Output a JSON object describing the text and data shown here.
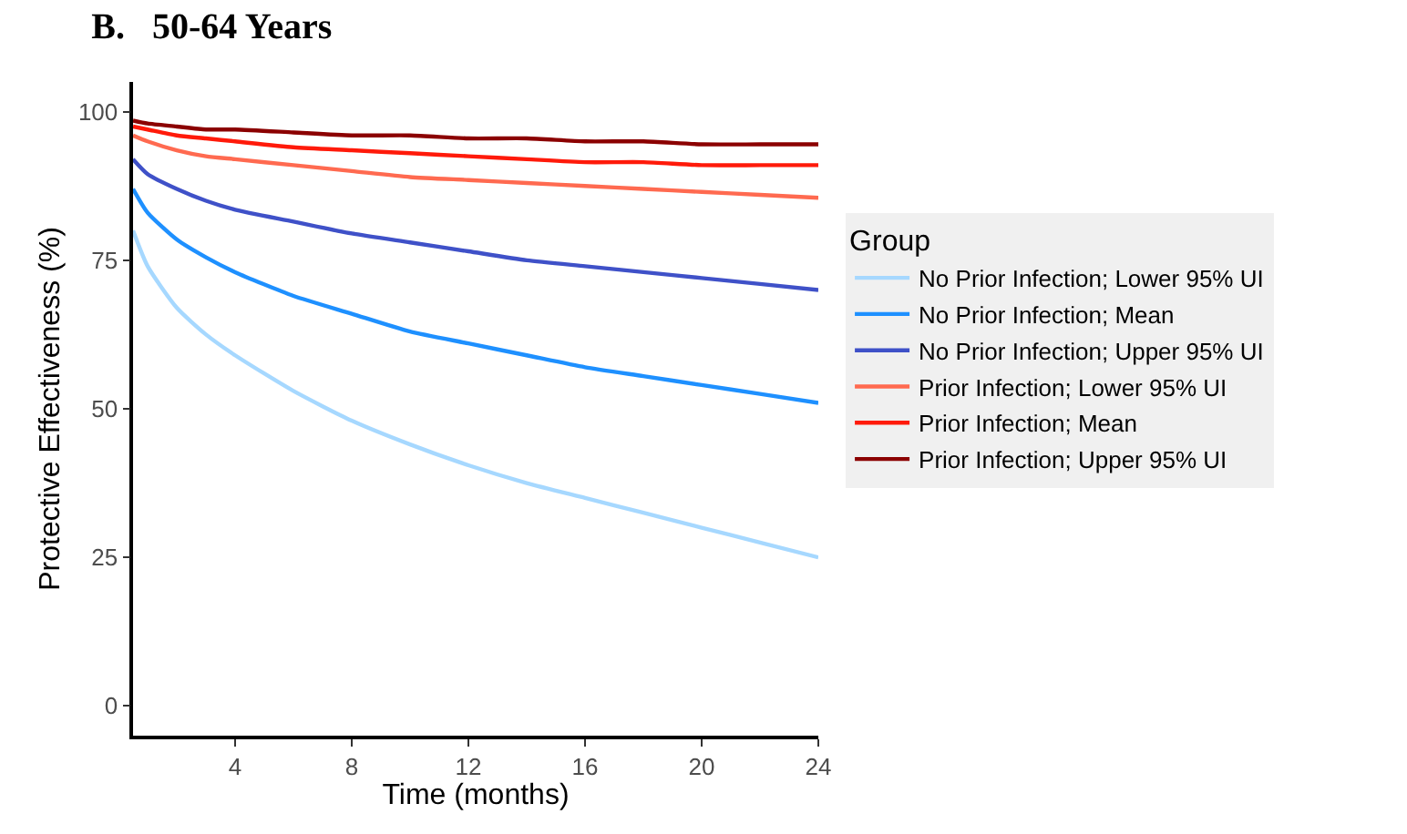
{
  "chart_data": {
    "type": "line",
    "title": "B.   50-64 Years",
    "xlabel": "Time (months)",
    "ylabel": "Protective Effectiveness (%)",
    "legend_title": "Group",
    "x": [
      0.5,
      1,
      2,
      3,
      4,
      6,
      8,
      10,
      12,
      14,
      16,
      18,
      20,
      22,
      24
    ],
    "series": [
      {
        "name": "No Prior Infection; Lower 95% UI",
        "color": "#a6d8ff",
        "values": [
          80,
          74,
          67,
          62.5,
          59,
          53,
          48,
          44,
          40.5,
          37.5,
          35,
          32.5,
          30,
          27.5,
          25
        ]
      },
      {
        "name": "No Prior Infection; Mean",
        "color": "#1e90ff",
        "values": [
          87,
          83,
          78.5,
          75.5,
          73,
          69,
          66,
          63,
          61,
          59,
          57,
          55.5,
          54,
          52.5,
          51
        ]
      },
      {
        "name": "No Prior Infection; Upper 95% UI",
        "color": "#3f51c8",
        "values": [
          92,
          89.5,
          87,
          85,
          83.5,
          81.5,
          79.5,
          78,
          76.5,
          75,
          74,
          73,
          72,
          71,
          70
        ]
      },
      {
        "name": "Prior Infection; Lower 95% UI",
        "color": "#ff6a50",
        "values": [
          96,
          95,
          93.5,
          92.5,
          92,
          91,
          90,
          89,
          88.5,
          88,
          87.5,
          87,
          86.5,
          86,
          85.5
        ]
      },
      {
        "name": "Prior Infection; Mean",
        "color": "#ff1a0a",
        "values": [
          97.5,
          97,
          96,
          95.5,
          95,
          94,
          93.5,
          93,
          92.5,
          92,
          91.5,
          91.5,
          91,
          91,
          91
        ]
      },
      {
        "name": "Prior Infection; Upper 95% UI",
        "color": "#8b0000",
        "values": [
          98.5,
          98,
          97.5,
          97,
          97,
          96.5,
          96,
          96,
          95.5,
          95.5,
          95,
          95,
          94.5,
          94.5,
          94.5
        ]
      }
    ],
    "xlim": [
      0.5,
      24
    ],
    "xticks": [
      4,
      8,
      12,
      16,
      20,
      24
    ],
    "ylim": [
      -5,
      105
    ],
    "yticks": [
      0,
      25,
      50,
      75,
      100
    ],
    "legend": "right",
    "marker": "none",
    "line_style": "solid"
  }
}
